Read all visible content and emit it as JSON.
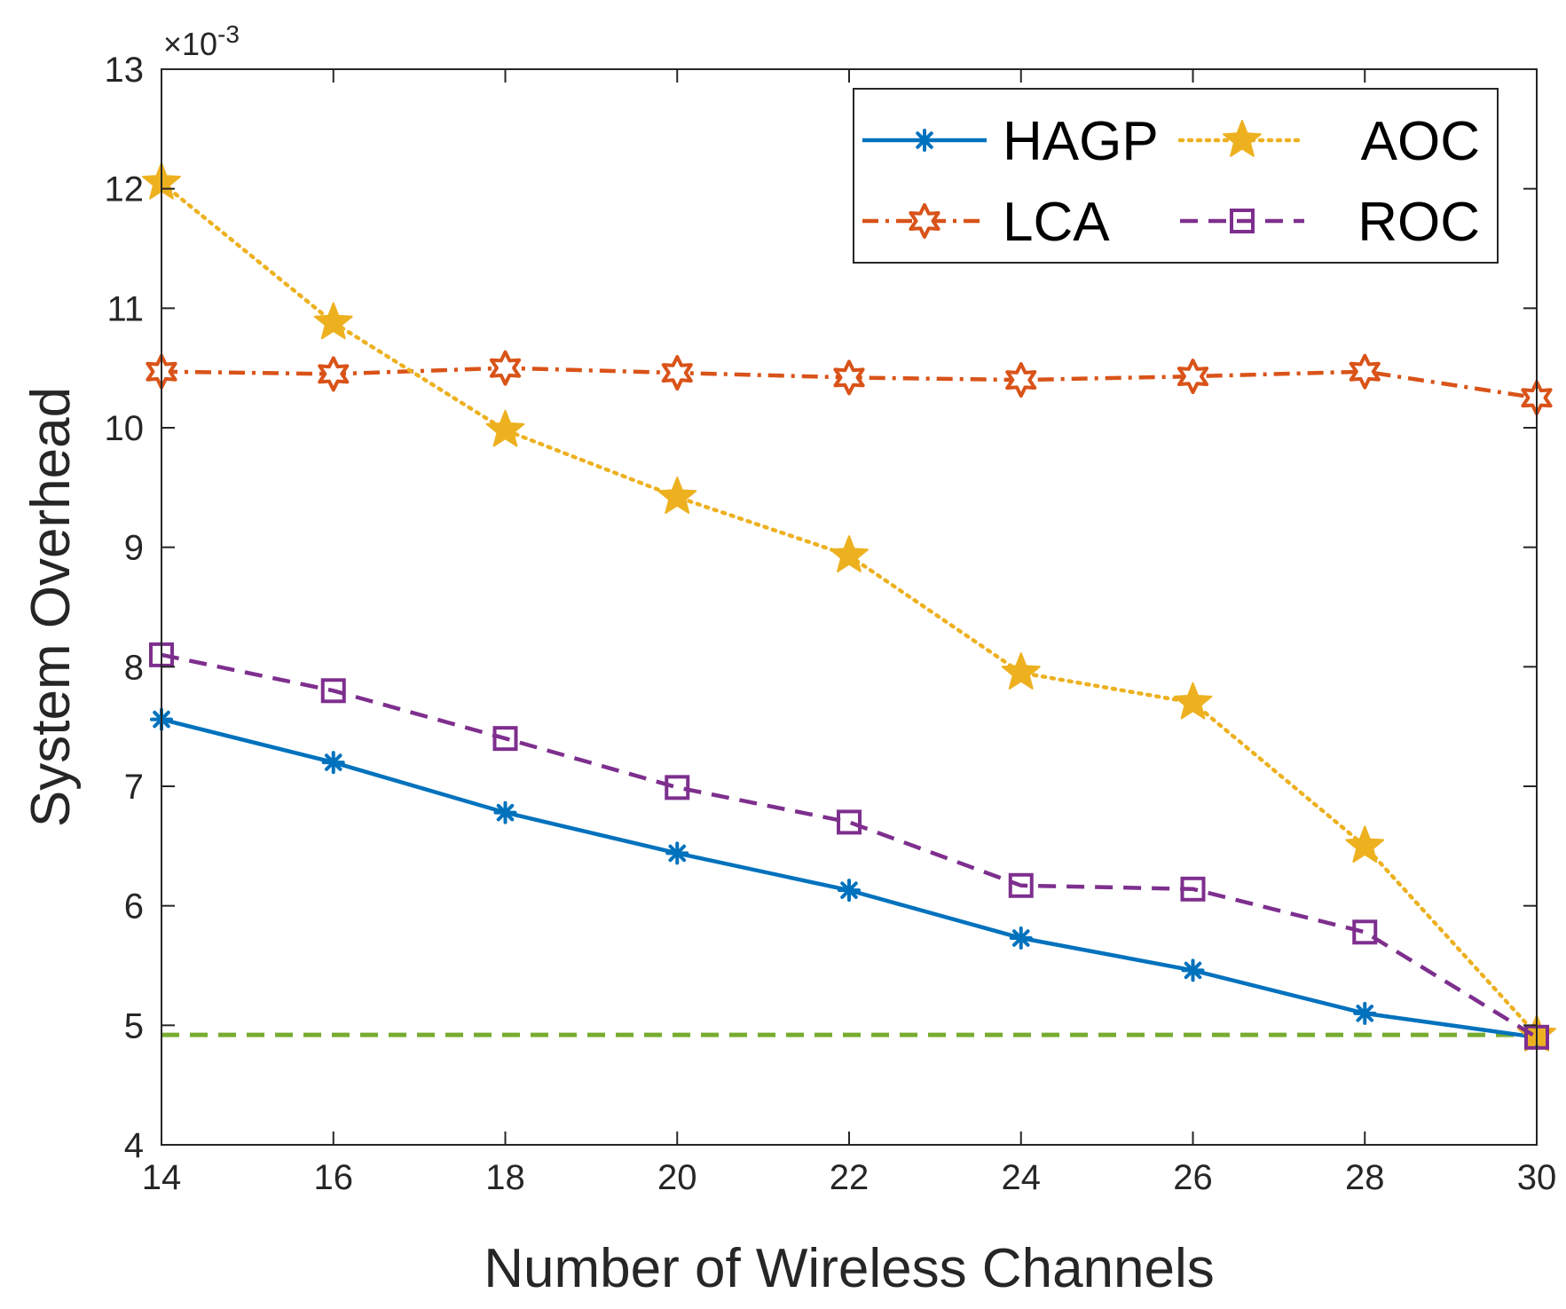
{
  "chart_data": {
    "type": "line",
    "title": "",
    "xlabel": "Number of Wireless Channels",
    "ylabel": "System Overhead",
    "y_multiplier_label": "×10",
    "y_multiplier_exponent": "-3",
    "x": [
      14,
      16,
      18,
      20,
      22,
      24,
      26,
      28,
      30
    ],
    "xlim": [
      14,
      30
    ],
    "ylim": [
      4,
      13
    ],
    "xticks": [
      14,
      16,
      18,
      20,
      22,
      24,
      26,
      28,
      30
    ],
    "yticks": [
      4,
      5,
      6,
      7,
      8,
      9,
      10,
      11,
      12,
      13
    ],
    "grid": false,
    "legend_position": "top-right",
    "series": [
      {
        "name": "HAGP",
        "color": "#0072BD",
        "line": "solid",
        "marker": "asterisk",
        "values": [
          7.56,
          7.2,
          6.78,
          6.44,
          6.13,
          5.73,
          5.46,
          5.1,
          4.9
        ]
      },
      {
        "name": "LCA",
        "color": "#D95319",
        "line": "dashdot",
        "marker": "hexagram",
        "values": [
          10.47,
          10.45,
          10.5,
          10.46,
          10.42,
          10.4,
          10.43,
          10.47,
          10.25
        ]
      },
      {
        "name": "AOC",
        "color": "#EDB120",
        "line": "dotted",
        "marker": "pentagram",
        "values": [
          12.05,
          10.88,
          9.98,
          9.42,
          8.93,
          7.95,
          7.7,
          6.5,
          4.92
        ]
      },
      {
        "name": "ROC",
        "color": "#7E2F8E",
        "line": "dashed",
        "marker": "square",
        "values": [
          8.1,
          7.8,
          7.4,
          6.99,
          6.7,
          6.17,
          6.14,
          5.78,
          4.9
        ]
      }
    ],
    "reference_line": {
      "y": 4.92,
      "color": "#77AC30",
      "line": "dashed"
    }
  }
}
